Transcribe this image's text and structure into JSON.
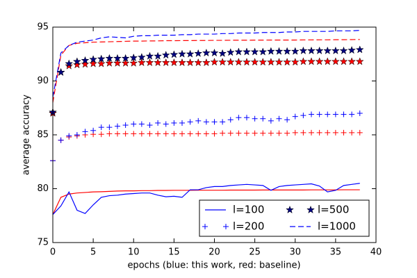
{
  "chart_data": {
    "type": "line",
    "xlabel": "epochs (blue: this work, red: baseline)",
    "ylabel": "average accuracy",
    "x": [
      0,
      1,
      2,
      3,
      4,
      5,
      6,
      7,
      8,
      9,
      10,
      11,
      12,
      13,
      14,
      15,
      16,
      17,
      18,
      19,
      20,
      21,
      22,
      23,
      24,
      25,
      26,
      27,
      28,
      29,
      30,
      31,
      32,
      33,
      34,
      35,
      36,
      37,
      38
    ],
    "xlim": [
      0,
      40
    ],
    "xticks": [
      0,
      5,
      10,
      15,
      20,
      25,
      30,
      35,
      40
    ],
    "ylim": [
      75,
      95
    ],
    "yticks": [
      75,
      80,
      85,
      90,
      95
    ],
    "legend": "lower right",
    "legend_columns": 2,
    "series": [
      {
        "name": "l=100",
        "color": "#0000ff",
        "linestyle": "solid",
        "marker": "none",
        "values": [
          77.6,
          78.4,
          79.7,
          78.0,
          77.7,
          78.5,
          79.2,
          79.35,
          79.4,
          79.5,
          79.55,
          79.6,
          79.6,
          79.4,
          79.25,
          79.3,
          79.2,
          79.9,
          79.9,
          80.1,
          80.2,
          80.2,
          80.3,
          80.35,
          80.4,
          80.35,
          80.3,
          79.85,
          80.2,
          80.3,
          80.35,
          80.4,
          80.45,
          80.25,
          79.7,
          79.85,
          80.3,
          80.4,
          80.5
        ]
      },
      {
        "name": "l=200",
        "color": "#0000ff",
        "linestyle": "none",
        "marker": "plus",
        "values": [
          82.6,
          84.5,
          84.9,
          85.0,
          85.3,
          85.4,
          85.7,
          85.7,
          85.8,
          85.9,
          86.0,
          86.0,
          85.9,
          86.1,
          86.0,
          86.1,
          86.1,
          86.2,
          86.3,
          86.2,
          86.2,
          86.2,
          86.4,
          86.6,
          86.6,
          86.5,
          86.5,
          86.3,
          86.5,
          86.4,
          86.7,
          86.8,
          86.9,
          86.9,
          86.9,
          86.9,
          86.9,
          86.9,
          87.0
        ]
      },
      {
        "name": "l=500",
        "color": "#000080",
        "linestyle": "none",
        "marker": "star",
        "values": [
          87.1,
          90.8,
          91.6,
          91.8,
          91.9,
          92.0,
          92.05,
          92.1,
          92.1,
          92.1,
          92.15,
          92.2,
          92.3,
          92.3,
          92.4,
          92.45,
          92.5,
          92.5,
          92.55,
          92.6,
          92.6,
          92.55,
          92.65,
          92.7,
          92.7,
          92.7,
          92.7,
          92.75,
          92.75,
          92.75,
          92.75,
          92.8,
          92.8,
          92.8,
          92.8,
          92.8,
          92.8,
          92.85,
          92.9
        ]
      },
      {
        "name": "l=1000",
        "color": "#0000ff",
        "linestyle": "dashed",
        "marker": "none",
        "values": [
          88.5,
          92.6,
          93.3,
          93.6,
          93.7,
          93.8,
          94.0,
          94.1,
          94.05,
          94.0,
          94.15,
          94.2,
          94.2,
          94.25,
          94.25,
          94.25,
          94.3,
          94.3,
          94.35,
          94.35,
          94.35,
          94.4,
          94.4,
          94.45,
          94.45,
          94.45,
          94.5,
          94.5,
          94.5,
          94.55,
          94.55,
          94.6,
          94.6,
          94.6,
          94.6,
          94.65,
          94.65,
          94.65,
          94.7
        ]
      },
      {
        "color": "#ff0000",
        "linestyle": "solid",
        "marker": "none",
        "values": [
          77.6,
          79.2,
          79.5,
          79.6,
          79.65,
          79.7,
          79.72,
          79.75,
          79.78,
          79.8,
          79.8,
          79.82,
          79.82,
          79.84,
          79.84,
          79.85,
          79.85,
          79.85,
          79.86,
          79.86,
          79.86,
          79.86,
          79.87,
          79.87,
          79.87,
          79.87,
          79.88,
          79.88,
          79.88,
          79.88,
          79.88,
          79.88,
          79.89,
          79.89,
          79.89,
          79.89,
          79.9,
          79.9,
          79.9
        ]
      },
      {
        "color": "#ff0000",
        "linestyle": "none",
        "marker": "plus",
        "values": [
          82.6,
          84.5,
          84.8,
          84.9,
          85.0,
          85.05,
          85.05,
          85.1,
          85.1,
          85.1,
          85.1,
          85.1,
          85.1,
          85.1,
          85.1,
          85.1,
          85.1,
          85.1,
          85.1,
          85.1,
          85.1,
          85.15,
          85.15,
          85.15,
          85.15,
          85.15,
          85.15,
          85.15,
          85.15,
          85.15,
          85.2,
          85.2,
          85.2,
          85.2,
          85.2,
          85.2,
          85.2,
          85.2,
          85.2
        ]
      },
      {
        "color": "#ff0000",
        "linestyle": "none",
        "marker": "star",
        "values": [
          87.0,
          90.8,
          91.4,
          91.5,
          91.55,
          91.6,
          91.6,
          91.65,
          91.65,
          91.65,
          91.65,
          91.7,
          91.7,
          91.7,
          91.7,
          91.7,
          91.7,
          91.7,
          91.7,
          91.7,
          91.75,
          91.75,
          91.75,
          91.75,
          91.75,
          91.75,
          91.75,
          91.75,
          91.75,
          91.75,
          91.75,
          91.8,
          91.8,
          91.8,
          91.8,
          91.8,
          91.8,
          91.8,
          91.8
        ]
      },
      {
        "color": "#ff0000",
        "linestyle": "dashed",
        "marker": "none",
        "values": [
          88.0,
          92.4,
          93.3,
          93.5,
          93.55,
          93.6,
          93.62,
          93.64,
          93.66,
          93.68,
          93.7,
          93.7,
          93.72,
          93.72,
          93.74,
          93.74,
          93.75,
          93.75,
          93.76,
          93.76,
          93.77,
          93.77,
          93.78,
          93.78,
          93.78,
          93.79,
          93.79,
          93.8,
          93.8,
          93.8,
          93.8,
          93.81,
          93.81,
          93.82,
          93.82,
          93.83,
          93.83,
          93.84,
          93.85
        ]
      }
    ]
  }
}
